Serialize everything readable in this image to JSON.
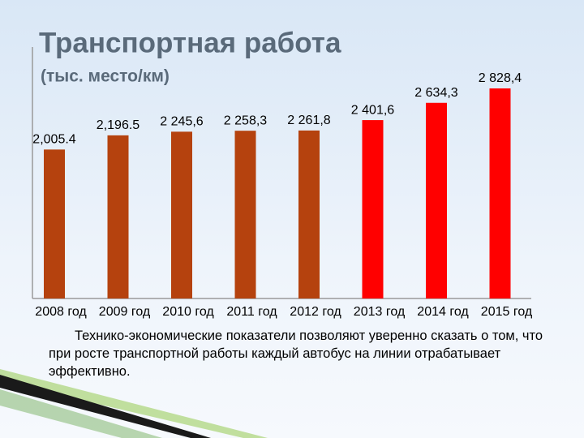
{
  "chart_data": {
    "type": "bar",
    "title": "Транспортная работа",
    "subtitle": "(тыс. место/км)",
    "categories": [
      "2008 год",
      "2009 год",
      "2010 год",
      "2011 год",
      "2012 год",
      "2013 год",
      "2014 год",
      "2015 год"
    ],
    "values": [
      2005.4,
      2196.5,
      2245.6,
      2258.3,
      2261.8,
      2401.6,
      2634.3,
      2828.4
    ],
    "value_labels": [
      "2,005.4",
      "2,196.5",
      "2 245,6",
      "2 258,3",
      "2 261,8",
      "2 401,6",
      "2 634,3",
      "2 828,4"
    ],
    "colors": [
      "#b5420e",
      "#b5420e",
      "#b5420e",
      "#b5420e",
      "#b5420e",
      "#ff0000",
      "#ff0000",
      "#ff0000"
    ]
  },
  "caption": "Технико-экономические показатели позволяют уверенно сказать о том, что при росте транспортной работы каждый автобус на линии отрабатывает эффективно."
}
